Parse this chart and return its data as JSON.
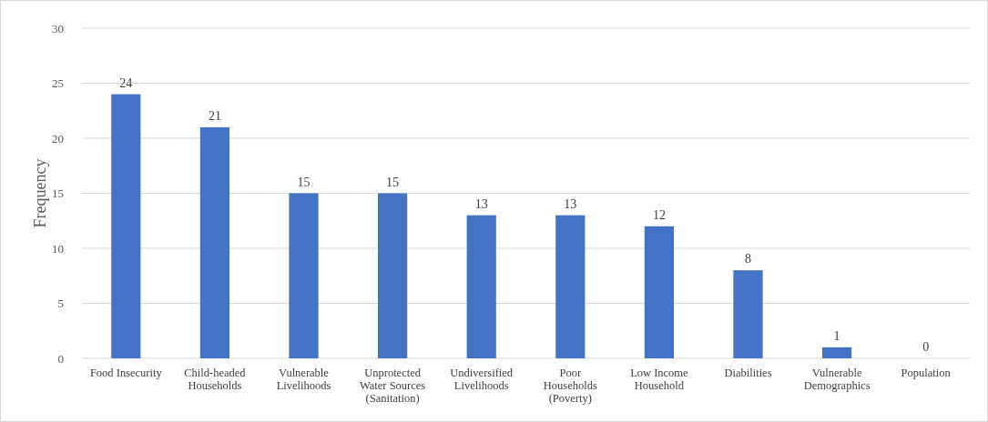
{
  "chart_data": {
    "type": "bar",
    "ylabel": "Frequency",
    "categories": [
      "Food Insecurity",
      "Child-headed\nHouseholds",
      "Vulnerable\nLivelihoods",
      "Unprotected\nWater Sources\n(Sanitation)",
      "Undiversified\nLivelihoods",
      "Poor\nHouseholds\n(Poverty)",
      "Low Income\nHousehold",
      "Diabilities",
      "Vulnerable\nDemographics",
      "Population"
    ],
    "values": [
      24,
      21,
      15,
      15,
      13,
      13,
      12,
      8,
      1,
      0
    ],
    "color": "#4472c4",
    "ylim": [
      0,
      30
    ],
    "yticks": [
      0,
      5,
      10,
      15,
      20,
      25,
      30
    ],
    "grid": "y",
    "data_labels": true
  }
}
